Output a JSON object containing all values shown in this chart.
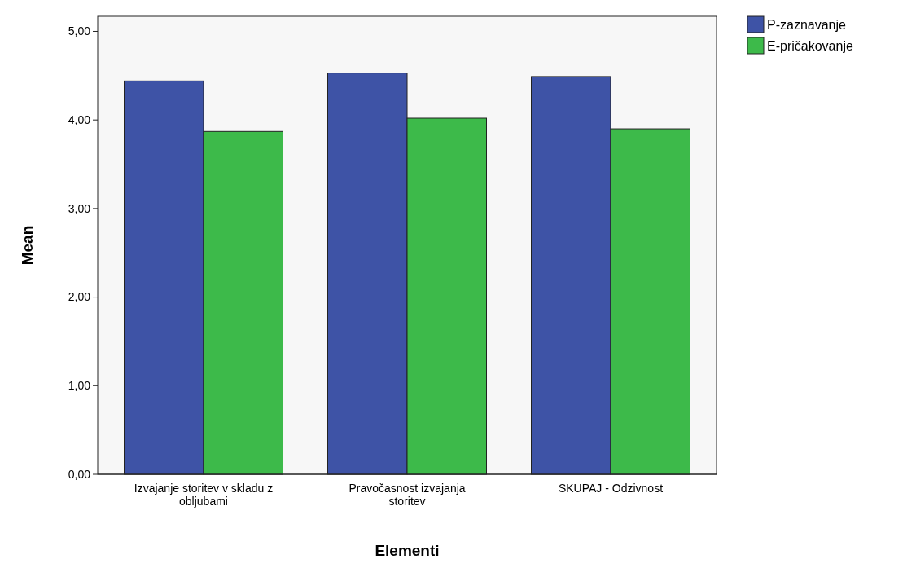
{
  "chart_data": {
    "type": "bar",
    "xlabel": "Elementi",
    "ylabel": "Mean",
    "categories": [
      "Izvajanje storitev v skladu z obljubami",
      "Pravočasnost izvajanja storitev",
      "SKUPAJ - Odzivnost"
    ],
    "series": [
      {
        "name": "P-zaznavanje",
        "color": "#3e53a6",
        "values": [
          4.44,
          4.53,
          4.49
        ]
      },
      {
        "name": "E-pričakovanje",
        "color": "#3dba4a",
        "values": [
          3.87,
          4.02,
          3.9
        ]
      }
    ],
    "ylim": [
      0,
      5.17
    ],
    "yticks": [
      {
        "value": 0,
        "label": "0,00"
      },
      {
        "value": 1,
        "label": "1,00"
      },
      {
        "value": 2,
        "label": "2,00"
      },
      {
        "value": 3,
        "label": "3,00"
      },
      {
        "value": 4,
        "label": "4,00"
      },
      {
        "value": 5,
        "label": "5,00"
      }
    ],
    "grid": false,
    "legend": "top right"
  }
}
